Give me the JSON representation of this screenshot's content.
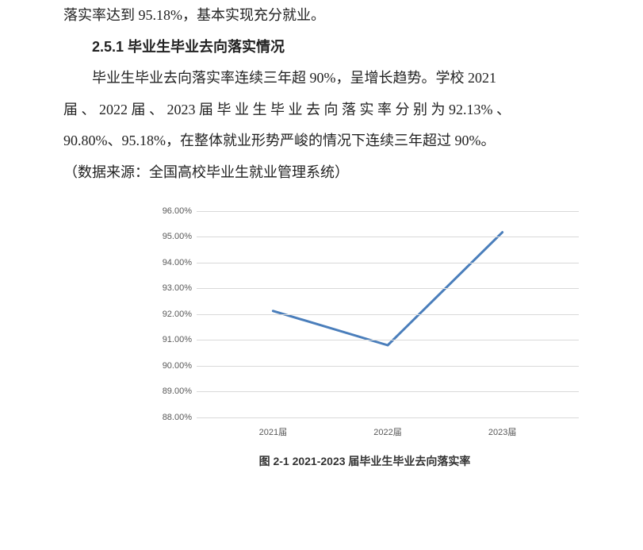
{
  "text": {
    "line1": "落实率达到 95.18%，基本实现充分就业。",
    "heading": "2.5.1 毕业生毕业去向落实情况",
    "para2_a": "毕业生毕业去向落实率连续三年超 90%，呈增长趋势。学校 2021",
    "para2_b": "届 、 2022 届 、 2023 届 毕 业 生 毕 业 去 向 落 实 率 分 别 为 92.13% 、",
    "para2_c": "90.80%、95.18%，在整体就业形势严峻的情况下连续三年超过 90%。",
    "para2_d": "（数据来源：全国高校毕业生就业管理系统）"
  },
  "chart": {
    "type": "line",
    "caption": "图 2-1 2021-2023 届毕业生毕业去向落实率",
    "categories": [
      "2021届",
      "2022届",
      "2023届"
    ],
    "values": [
      92.13,
      90.8,
      95.18
    ],
    "ylim": [
      88.0,
      96.0
    ],
    "ytick_step": 1.0,
    "y_tick_format_suffix": "%",
    "y_tick_decimals": 2,
    "line_color": "#4a7ebb",
    "line_width": 3,
    "grid_color": "#d9d9d9",
    "background_color": "#ffffff",
    "tick_label_color": "#595959",
    "tick_label_fontsize": 11,
    "x_positions_pct": [
      20,
      50,
      80
    ],
    "caption_fontsize": 14,
    "caption_font_weight": "bold"
  }
}
